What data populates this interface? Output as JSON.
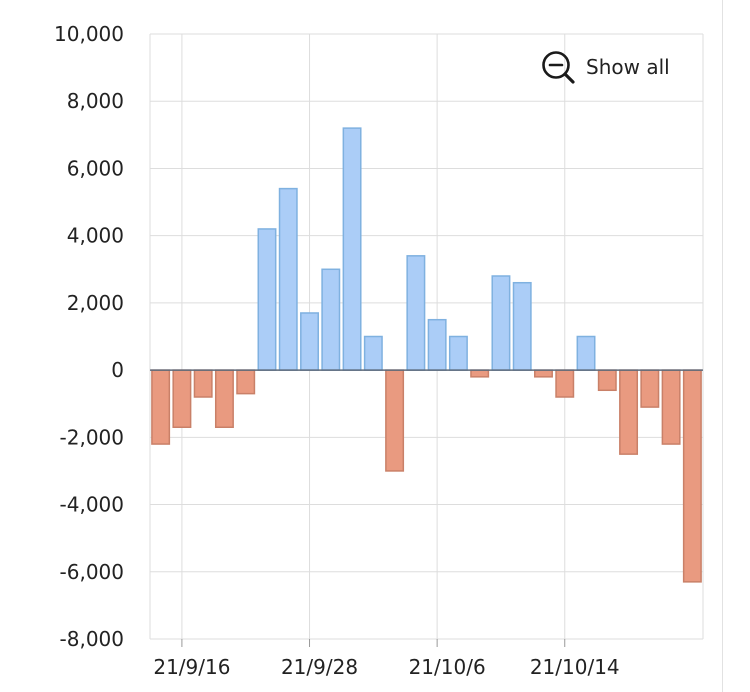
{
  "controls": {
    "show_all_label": "Show all",
    "show_all_icon": "zoom-out-icon"
  },
  "colors": {
    "positive_fill": "#abcdf7",
    "positive_stroke": "#7fb1e0",
    "negative_fill": "#e99a80",
    "negative_stroke": "#c98068",
    "grid": "#dddddd",
    "zero_line": "#5e6a7a"
  },
  "chart_data": {
    "type": "bar",
    "title": "",
    "xlabel": "",
    "ylabel": "",
    "ylim": [
      -8000,
      10000
    ],
    "yticks": [
      10000,
      8000,
      6000,
      4000,
      2000,
      0,
      -2000,
      -4000,
      -6000,
      -8000
    ],
    "ytick_labels": [
      "10,000",
      "8,000",
      "6,000",
      "4,000",
      "2,000",
      "0",
      "-2,000",
      "-4,000",
      "-6,000",
      "-8,000"
    ],
    "xtick_labels": [
      "21/9/16",
      "21/9/28",
      "21/10/6",
      "21/10/14"
    ],
    "grid": true,
    "legend": "none",
    "values": [
      -2200,
      -1700,
      -800,
      -1700,
      -700,
      4200,
      5400,
      1700,
      3000,
      7200,
      1000,
      -3000,
      3400,
      1500,
      1000,
      -200,
      2800,
      2600,
      -200,
      -800,
      1000,
      -600,
      -2500,
      -1100,
      -2200,
      -6300
    ]
  }
}
